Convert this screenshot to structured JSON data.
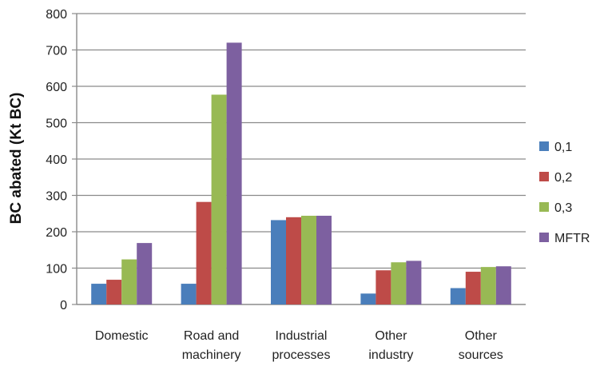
{
  "chart_data": {
    "type": "bar",
    "title": "",
    "xlabel": "",
    "ylabel": "BC abated (Kt BC)",
    "ylim": [
      0,
      800
    ],
    "yticks": [
      0,
      100,
      200,
      300,
      400,
      500,
      600,
      700,
      800
    ],
    "grid": true,
    "legend_position": "right",
    "categories": [
      [
        "Domestic"
      ],
      [
        "Road and",
        "machinery"
      ],
      [
        "Industrial",
        "processes"
      ],
      [
        "Other",
        "industry"
      ],
      [
        "Other",
        "sources"
      ]
    ],
    "series": [
      {
        "name": "0,1",
        "color": "#4a7ebb",
        "values": [
          57,
          57,
          232,
          30,
          45
        ]
      },
      {
        "name": "0,2",
        "color": "#be4b48",
        "values": [
          68,
          282,
          240,
          94,
          90
        ]
      },
      {
        "name": "0,3",
        "color": "#98b954",
        "values": [
          124,
          577,
          244,
          116,
          103
        ]
      },
      {
        "name": "MFTR",
        "color": "#7d60a0",
        "values": [
          169,
          720,
          244,
          120,
          105
        ]
      }
    ]
  }
}
